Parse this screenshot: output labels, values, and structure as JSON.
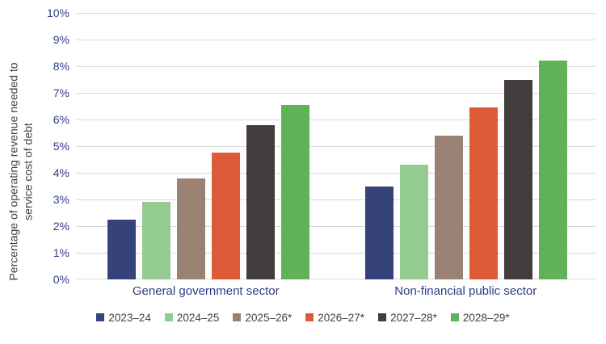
{
  "chart_data": {
    "type": "bar",
    "title": "",
    "ylabel": "Percentage of operating revenue needed to service cost of debt",
    "ylabel_lines": [
      "Percentage of operating revenue needed to",
      "service cost of debt"
    ],
    "categories": [
      "General government sector",
      "Non-financial public sector"
    ],
    "series": [
      {
        "name": "2023–24",
        "color": "#364379",
        "values": [
          2.25,
          3.5
        ]
      },
      {
        "name": "2024–25",
        "color": "#94CB90",
        "values": [
          2.9,
          4.3
        ]
      },
      {
        "name": "2025–26*",
        "color": "#998274",
        "values": [
          3.8,
          5.4
        ]
      },
      {
        "name": "2026–27*",
        "color": "#DD5C37",
        "values": [
          4.75,
          6.45
        ]
      },
      {
        "name": "2027–28*",
        "color": "#423C3C",
        "values": [
          5.8,
          7.5
        ]
      },
      {
        "name": "2028–29*",
        "color": "#5FB258",
        "values": [
          6.55,
          8.2
        ]
      }
    ],
    "ylim": [
      0,
      10
    ],
    "ytick_step": 1,
    "ytick_suffix": "%",
    "grid": true,
    "legend_position": "bottom"
  },
  "styles": {
    "background": "#FFFFFF",
    "axis_label_color": "#303C87",
    "title_color": "#404040",
    "legend_text_color": "#404040",
    "gridline_color": "#D9D9D9"
  }
}
